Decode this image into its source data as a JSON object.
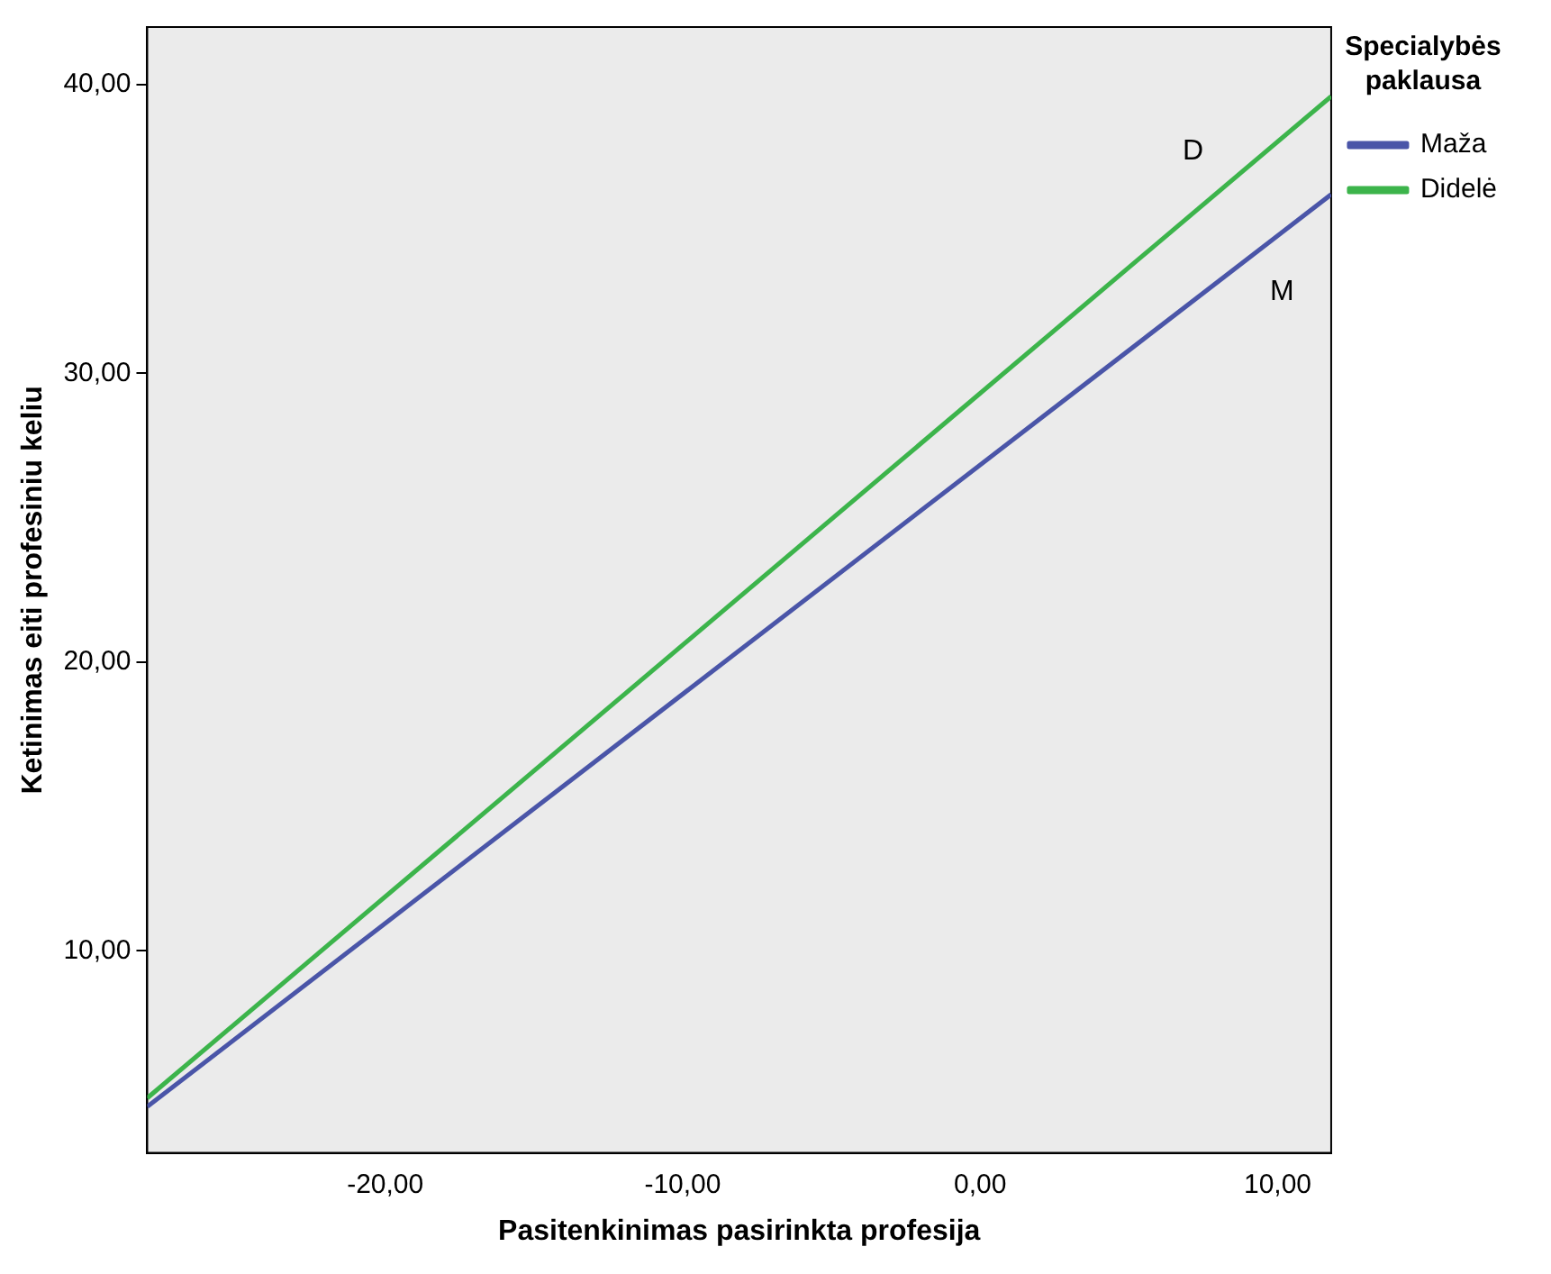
{
  "chart_data": {
    "type": "line",
    "xlabel": "Pasitenkinimas pasirinkta profesija",
    "ylabel": "Ketinimas eiti profesiniu keliu",
    "legend_title": "Specialybės paklausa",
    "x": [
      -28,
      11.8
    ],
    "series": [
      {
        "name": "Maža",
        "color": "#4a55a8",
        "values": [
          4.6,
          36.2
        ]
      },
      {
        "name": "Didelė",
        "color": "#3cb44b",
        "values": [
          4.9,
          39.6
        ]
      }
    ],
    "xlim": [
      -28,
      11.8
    ],
    "xticks": [
      {
        "value": -20,
        "label": "-20,00"
      },
      {
        "value": -10,
        "label": "-10,00"
      },
      {
        "value": 0,
        "label": "0,00"
      },
      {
        "value": 10,
        "label": "10,00"
      }
    ],
    "ylim": [
      3,
      42
    ],
    "yticks": [
      {
        "value": 10,
        "label": "10,00"
      },
      {
        "value": 20,
        "label": "20,00"
      },
      {
        "value": 30,
        "label": "30,00"
      },
      {
        "value": 40,
        "label": "40,00"
      }
    ],
    "annotations": [
      {
        "text": "D",
        "x": 8,
        "y": 36.3
      },
      {
        "text": "M",
        "x": 9.3,
        "y": 34.2
      }
    ],
    "grid": false,
    "legend": "right",
    "marker": "none",
    "line_style": "solid"
  }
}
